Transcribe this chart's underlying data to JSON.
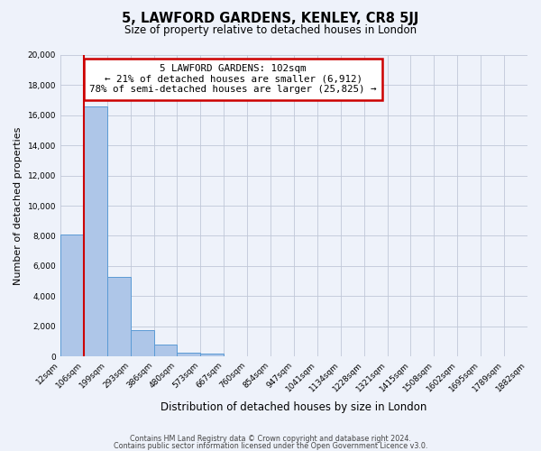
{
  "title": "5, LAWFORD GARDENS, KENLEY, CR8 5JJ",
  "subtitle": "Size of property relative to detached houses in London",
  "bar_heights": [
    8100,
    16600,
    5300,
    1750,
    800,
    250,
    200,
    0,
    0,
    0,
    0,
    0,
    0,
    0,
    0,
    0,
    0,
    0,
    0,
    0
  ],
  "bin_labels": [
    "12sqm",
    "106sqm",
    "199sqm",
    "293sqm",
    "386sqm",
    "480sqm",
    "573sqm",
    "667sqm",
    "760sqm",
    "854sqm",
    "947sqm",
    "1041sqm",
    "1134sqm",
    "1228sqm",
    "1321sqm",
    "1415sqm",
    "1508sqm",
    "1602sqm",
    "1695sqm",
    "1789sqm",
    "1882sqm"
  ],
  "bar_color": "#aec6e8",
  "bar_edge_color": "#5b9bd5",
  "vline_color": "#cc0000",
  "ylabel": "Number of detached properties",
  "xlabel": "Distribution of detached houses by size in London",
  "ylim": [
    0,
    20000
  ],
  "yticks": [
    0,
    2000,
    4000,
    6000,
    8000,
    10000,
    12000,
    14000,
    16000,
    18000,
    20000
  ],
  "annotation_title": "5 LAWFORD GARDENS: 102sqm",
  "annotation_line1": "← 21% of detached houses are smaller (6,912)",
  "annotation_line2": "78% of semi-detached houses are larger (25,825) →",
  "annotation_box_color": "#ffffff",
  "annotation_border_color": "#cc0000",
  "footer1": "Contains HM Land Registry data © Crown copyright and database right 2024.",
  "footer2": "Contains public sector information licensed under the Open Government Licence v3.0.",
  "bg_color": "#eef2fa",
  "plot_bg_color": "#eef2fa"
}
